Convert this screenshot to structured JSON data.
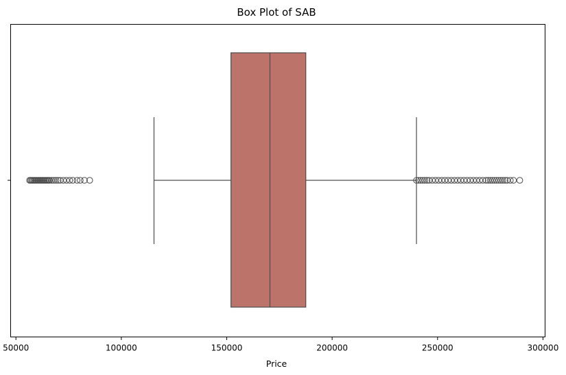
{
  "chart_data": {
    "type": "boxplot",
    "orientation": "horizontal",
    "title": "Box Plot of SAB",
    "xlabel": "Price",
    "ylabel": "",
    "xlim": [
      47500,
      301000
    ],
    "xticks": [
      50000,
      100000,
      150000,
      200000,
      250000,
      300000
    ],
    "xtick_labels": [
      "50000",
      "100000",
      "150000",
      "200000",
      "250000",
      "300000"
    ],
    "grid": false,
    "box": {
      "whisker_low": 115500,
      "q1": 152000,
      "median": 170500,
      "q3": 187500,
      "whisker_high": 240000
    },
    "outliers_low": [
      56500,
      57000,
      57500,
      58000,
      58500,
      59000,
      59500,
      60000,
      60500,
      61000,
      61500,
      62000,
      62500,
      63000,
      63500,
      64000,
      64500,
      65000,
      65500,
      66000,
      67000,
      68000,
      69000,
      70000,
      71000,
      72500,
      74000,
      75500,
      77000,
      79000,
      80500,
      82500,
      85000
    ],
    "outliers_high": [
      240000,
      241000,
      242000,
      243000,
      244000,
      245000,
      246000,
      247500,
      249000,
      250500,
      252000,
      253500,
      255000,
      256500,
      258000,
      259500,
      261000,
      262500,
      264000,
      265500,
      267000,
      268500,
      270000,
      271500,
      273000,
      274000,
      275000,
      276000,
      277000,
      278000,
      279000,
      280000,
      281000,
      282000,
      283000,
      284500,
      286000,
      289000
    ],
    "colors": {
      "box_fill": "#bc736a",
      "line": "#4d4d4d",
      "outlier_edge": "#4d4d4d",
      "axes": "#000000"
    }
  }
}
